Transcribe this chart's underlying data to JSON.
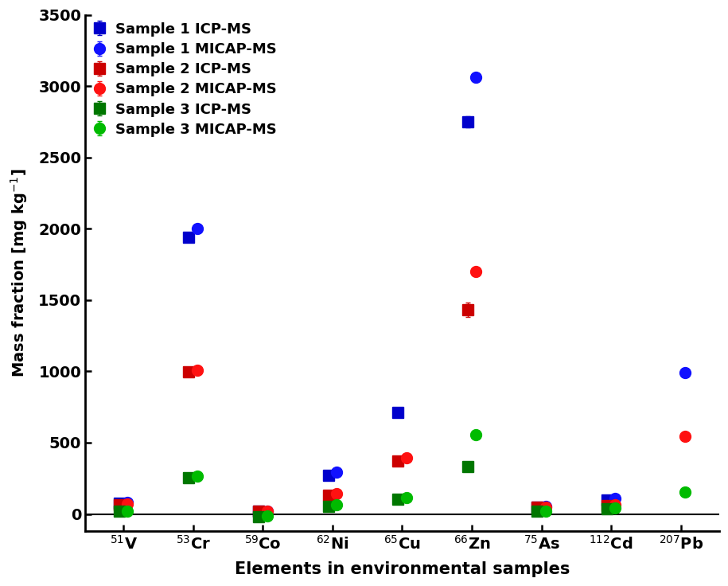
{
  "elements": [
    "$^{51}$V",
    "$^{53}$Cr",
    "$^{59}$Co",
    "$^{62}$Ni",
    "$^{65}$Cu",
    "$^{66}$Zn",
    "$^{75}$As",
    "$^{112}$Cd",
    "$^{207}$Pb"
  ],
  "series": [
    {
      "label": "Sample 1 ICP-MS",
      "color": "#0000CC",
      "marker": "s",
      "values": [
        75,
        1940,
        20,
        270,
        710,
        2750,
        50,
        100,
        null
      ],
      "yerr": [
        5,
        30,
        3,
        15,
        20,
        40,
        5,
        8,
        null
      ]
    },
    {
      "label": "Sample 1 MICAP-MS",
      "color": "#1111FF",
      "marker": "o",
      "values": [
        80,
        2000,
        22,
        295,
        null,
        3060,
        55,
        110,
        990
      ],
      "yerr": [
        5,
        25,
        3,
        15,
        null,
        30,
        5,
        8,
        20
      ]
    },
    {
      "label": "Sample 2 ICP-MS",
      "color": "#CC0000",
      "marker": "s",
      "values": [
        65,
        995,
        18,
        130,
        370,
        1430,
        45,
        60,
        null
      ],
      "yerr": [
        5,
        30,
        3,
        10,
        20,
        50,
        5,
        6,
        null
      ]
    },
    {
      "label": "Sample 2 MICAP-MS",
      "color": "#FF1111",
      "marker": "o",
      "values": [
        70,
        1010,
        19,
        145,
        395,
        1700,
        48,
        65,
        545
      ],
      "yerr": [
        5,
        30,
        3,
        10,
        20,
        30,
        5,
        6,
        15
      ]
    },
    {
      "label": "Sample 3 ICP-MS",
      "color": "#007700",
      "marker": "s",
      "values": [
        18,
        255,
        -20,
        55,
        105,
        330,
        20,
        38,
        null
      ],
      "yerr": [
        3,
        10,
        3,
        5,
        8,
        15,
        3,
        4,
        null
      ]
    },
    {
      "label": "Sample 3 MICAP-MS",
      "color": "#00BB00",
      "marker": "o",
      "values": [
        22,
        265,
        -15,
        65,
        115,
        555,
        22,
        40,
        155
      ],
      "yerr": [
        3,
        10,
        3,
        5,
        8,
        15,
        3,
        4,
        10
      ]
    }
  ],
  "ylabel": "Mass fraction [mg kg$^{-1}$]",
  "xlabel": "Elements in environmental samples",
  "ylim": [
    -120,
    3500
  ],
  "yticks": [
    0,
    500,
    1000,
    1500,
    2000,
    2500,
    3000,
    3500
  ],
  "markersize": 10,
  "capsize": 2,
  "elinewidth": 1.0,
  "offsets": [
    -0.06,
    0.06,
    -0.06,
    0.06,
    -0.06,
    0.06
  ],
  "background_color": "#ffffff"
}
